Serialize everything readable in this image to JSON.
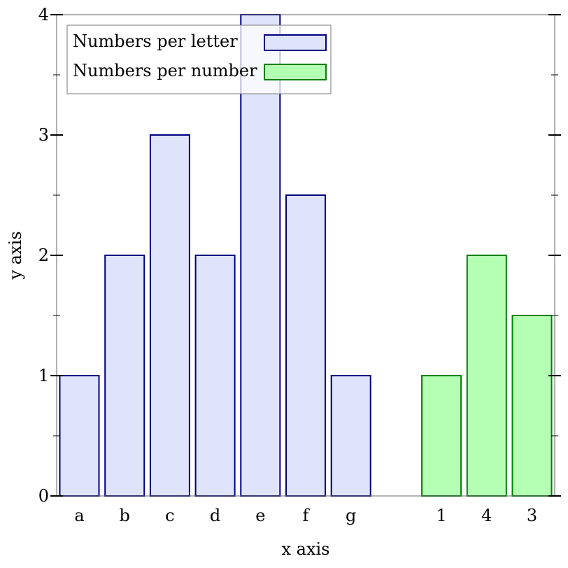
{
  "chart_data": {
    "type": "bar",
    "xlabel": "x axis",
    "ylabel": "y axis",
    "ylim": [
      0,
      4
    ],
    "yticks": [
      "0",
      "1",
      "2",
      "3",
      "4"
    ],
    "grid": false,
    "legend_position": "top-left",
    "series": [
      {
        "name": "Numbers per letter",
        "categories": [
          "a",
          "b",
          "c",
          "d",
          "e",
          "f",
          "g"
        ],
        "values": [
          1,
          2,
          3,
          2,
          4,
          2.5,
          1
        ],
        "fill": "#e0e4fb",
        "stroke": "#000080"
      },
      {
        "name": "Numbers per number",
        "categories": [
          "1",
          "4",
          "3"
        ],
        "values": [
          1,
          2,
          1.5
        ],
        "fill": "#b5ffb5",
        "stroke": "#008000"
      }
    ]
  }
}
